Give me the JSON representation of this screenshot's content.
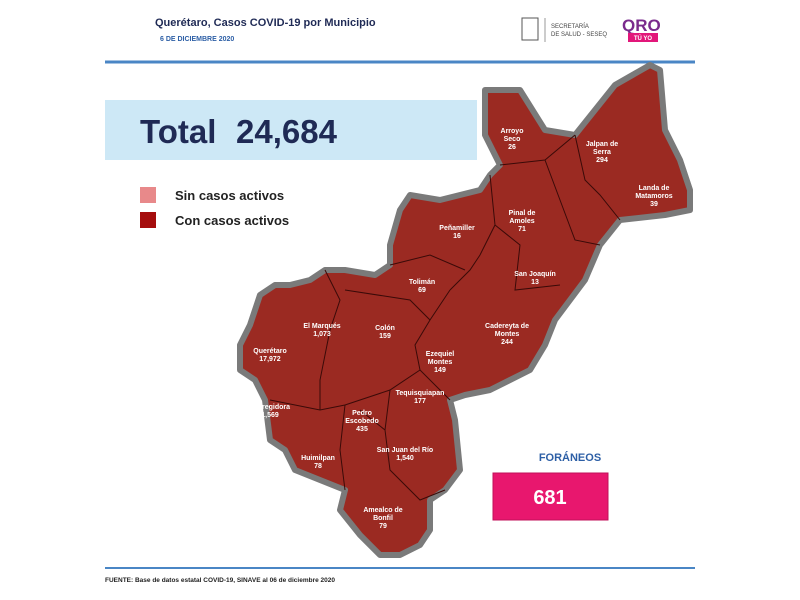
{
  "header": {
    "title": "Querétaro, Casos COVID-19 por Municipio",
    "date": "6 DE DICIEMBRE 2020",
    "agency": [
      "SECRETARÍA",
      "DE SALUD - SESEQ"
    ],
    "brand": "QRO",
    "brand_tag": "TÚ YO"
  },
  "total": {
    "label": "Total",
    "value": "24,684"
  },
  "legend": [
    "Sin casos activos",
    "Con casos activos"
  ],
  "municipalities": [
    {
      "name": [
        "Arroyo",
        "Seco"
      ],
      "cases": "26"
    },
    {
      "name": [
        "Jalpan de",
        "Serra"
      ],
      "cases": "294"
    },
    {
      "name": [
        "Landa de",
        "Matamoros"
      ],
      "cases": "39"
    },
    {
      "name": [
        "Peñamiller"
      ],
      "cases": "16"
    },
    {
      "name": [
        "Pinal de",
        "Amoles"
      ],
      "cases": "71"
    },
    {
      "name": [
        "San Joaquín"
      ],
      "cases": "13"
    },
    {
      "name": [
        "Tolimán"
      ],
      "cases": "69"
    },
    {
      "name": [
        "El   Marqués"
      ],
      "cases": "1,073"
    },
    {
      "name": [
        "Colón"
      ],
      "cases": "159"
    },
    {
      "name": [
        "Cadereyta de",
        "Montes"
      ],
      "cases": "244"
    },
    {
      "name": [
        "Querétaro"
      ],
      "cases": "17,972"
    },
    {
      "name": [
        "Ezequiel",
        "Montes"
      ],
      "cases": "149"
    },
    {
      "name": [
        "Tequisquiapan"
      ],
      "cases": "177"
    },
    {
      "name": [
        "Corregidora"
      ],
      "cases": "1,569"
    },
    {
      "name": [
        "Pedro",
        "Escobedo"
      ],
      "cases": "435"
    },
    {
      "name": [
        "Huimilpan"
      ],
      "cases": "78"
    },
    {
      "name": [
        "San Juan del Río"
      ],
      "cases": "1,540"
    },
    {
      "name": [
        "Amealco de",
        "Bonfil"
      ],
      "cases": "79"
    }
  ],
  "foreign": {
    "label": "FORÁNEOS",
    "value": "681"
  },
  "footer": "FUENTE:  Base de datos estatal COVID-19, SINAVE al 06 de diciembre 2020"
}
